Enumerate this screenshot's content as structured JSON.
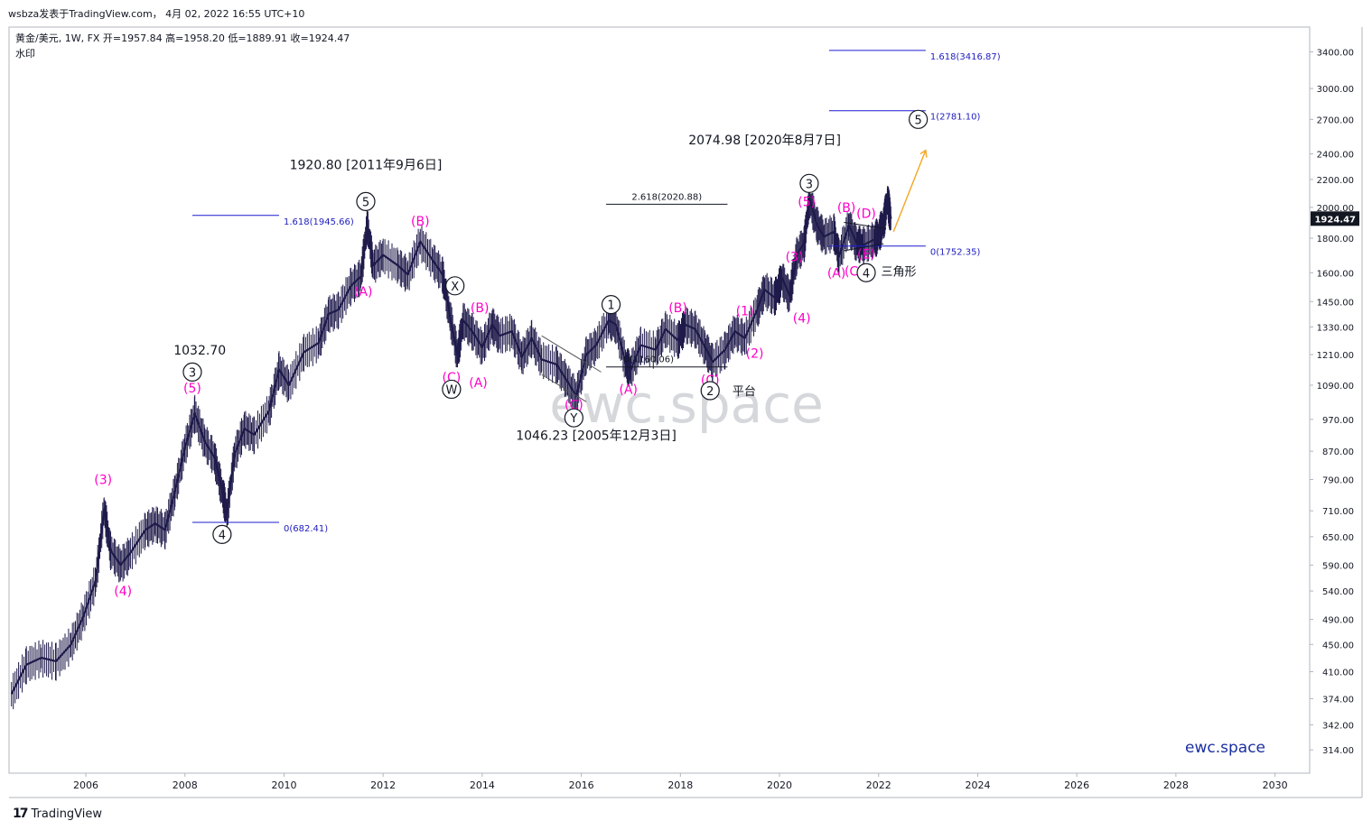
{
  "header": {
    "title": "wsbza发表于TradingView.com， 4月 02, 2022 16:55 UTC+10",
    "symbol_line": "黄金/美元, 1W, FX  开=1957.84  高=1958.20  低=1889.91  收=1924.47",
    "watermark_label": "水印"
  },
  "footer": {
    "brand": "TradingView"
  },
  "watermark": "ewc.space",
  "corner_mark": "ewc.space",
  "colors": {
    "price": "#1e1a4a",
    "wave_label": "#ff00c8",
    "fib_line": "#1c1cd0",
    "fib_text": "#2020c0",
    "projection": "#f5a623",
    "grid_border": "#b2b5be",
    "last_price_bg": "#131722"
  },
  "chart_data": {
    "type": "line",
    "xlabel": "",
    "ylabel": "",
    "scale": "log",
    "ylim": [
      290,
      3700
    ],
    "xlim": [
      2004.45,
      2030.7
    ],
    "x_ticks": [
      "2006",
      "2008",
      "2010",
      "2012",
      "2014",
      "2016",
      "2018",
      "2020",
      "2022",
      "2024",
      "2026",
      "2028",
      "2030"
    ],
    "y_ticks": [
      "3400.00",
      "3000.00",
      "2700.00",
      "2400.00",
      "2200.00",
      "2000.00",
      "1800.00",
      "1600.00",
      "1450.00",
      "1330.00",
      "1210.00",
      "1090.00",
      "970.00",
      "870.00",
      "790.00",
      "710.00",
      "650.00",
      "590.00",
      "540.00",
      "490.00",
      "450.00",
      "410.00",
      "374.00",
      "342.00",
      "314.00"
    ],
    "last_price": "1924.47",
    "series": [
      {
        "points": [
          [
            2004.5,
            380
          ],
          [
            2004.8,
            420
          ],
          [
            2005.1,
            430
          ],
          [
            2005.4,
            425
          ],
          [
            2005.7,
            450
          ],
          [
            2005.95,
            495
          ],
          [
            2006.2,
            560
          ],
          [
            2006.37,
            715
          ],
          [
            2006.5,
            620
          ],
          [
            2006.7,
            590
          ],
          [
            2006.9,
            615
          ],
          [
            2007.2,
            665
          ],
          [
            2007.4,
            680
          ],
          [
            2007.6,
            665
          ],
          [
            2007.8,
            760
          ],
          [
            2008.0,
            880
          ],
          [
            2008.2,
            990
          ],
          [
            2008.4,
            900
          ],
          [
            2008.6,
            850
          ],
          [
            2008.75,
            760
          ],
          [
            2008.85,
            705
          ],
          [
            2009.0,
            860
          ],
          [
            2009.2,
            940
          ],
          [
            2009.4,
            920
          ],
          [
            2009.7,
            1000
          ],
          [
            2009.9,
            1150
          ],
          [
            2010.1,
            1090
          ],
          [
            2010.4,
            1220
          ],
          [
            2010.7,
            1260
          ],
          [
            2010.9,
            1390
          ],
          [
            2011.1,
            1410
          ],
          [
            2011.35,
            1530
          ],
          [
            2011.55,
            1580
          ],
          [
            2011.68,
            1890
          ],
          [
            2011.8,
            1640
          ],
          [
            2012.0,
            1700
          ],
          [
            2012.3,
            1640
          ],
          [
            2012.5,
            1590
          ],
          [
            2012.75,
            1780
          ],
          [
            2013.0,
            1670
          ],
          [
            2013.2,
            1590
          ],
          [
            2013.35,
            1380
          ],
          [
            2013.5,
            1210
          ],
          [
            2013.62,
            1360
          ],
          [
            2013.8,
            1310
          ],
          [
            2014.0,
            1240
          ],
          [
            2014.2,
            1340
          ],
          [
            2014.35,
            1290
          ],
          [
            2014.6,
            1310
          ],
          [
            2014.8,
            1200
          ],
          [
            2015.0,
            1280
          ],
          [
            2015.2,
            1190
          ],
          [
            2015.5,
            1170
          ],
          [
            2015.7,
            1110
          ],
          [
            2015.9,
            1050
          ],
          [
            2016.1,
            1210
          ],
          [
            2016.3,
            1250
          ],
          [
            2016.55,
            1360
          ],
          [
            2016.7,
            1340
          ],
          [
            2016.9,
            1170
          ],
          [
            2017.0,
            1150
          ],
          [
            2017.2,
            1250
          ],
          [
            2017.5,
            1230
          ],
          [
            2017.7,
            1320
          ],
          [
            2017.95,
            1270
          ],
          [
            2018.1,
            1340
          ],
          [
            2018.3,
            1320
          ],
          [
            2018.5,
            1240
          ],
          [
            2018.65,
            1180
          ],
          [
            2018.9,
            1230
          ],
          [
            2019.1,
            1310
          ],
          [
            2019.3,
            1280
          ],
          [
            2019.55,
            1410
          ],
          [
            2019.7,
            1510
          ],
          [
            2019.9,
            1470
          ],
          [
            2020.05,
            1570
          ],
          [
            2020.2,
            1480
          ],
          [
            2020.35,
            1700
          ],
          [
            2020.5,
            1770
          ],
          [
            2020.6,
            2060
          ],
          [
            2020.75,
            1890
          ],
          [
            2020.9,
            1810
          ],
          [
            2021.1,
            1840
          ],
          [
            2021.2,
            1690
          ],
          [
            2021.4,
            1880
          ],
          [
            2021.55,
            1770
          ],
          [
            2021.7,
            1760
          ],
          [
            2021.9,
            1790
          ],
          [
            2022.0,
            1820
          ],
          [
            2022.1,
            1900
          ],
          [
            2022.18,
            2050
          ],
          [
            2022.25,
            1924
          ]
        ]
      }
    ],
    "fib_levels": [
      {
        "label": "1.618(1945.66)",
        "value": 1945.66,
        "x_start": 2008.15,
        "x_end": 2009.9
      },
      {
        "label": "0(682.41)",
        "value": 682.41,
        "x_start": 2008.15,
        "x_end": 2009.9
      },
      {
        "label": "2.618(2020.88)",
        "value": 2020.88,
        "x_start": 2016.5,
        "x_end": 2018.95
      },
      {
        "label": "0(1160.06)",
        "value": 1160.06,
        "x_start": 2016.5,
        "x_end": 2018.95
      },
      {
        "label": "1.618(3416.87)",
        "value": 3416.87,
        "x_start": 2021.0,
        "x_end": 2022.95
      },
      {
        "label": "1(2781.10)",
        "value": 2781.1,
        "x_start": 2021.0,
        "x_end": 2022.95
      },
      {
        "label": "0(1752.35)",
        "value": 1752.35,
        "x_start": 2021.0,
        "x_end": 2022.95
      }
    ],
    "wave_labels": [
      {
        "text": "(3)",
        "x": 2006.35,
        "y": 790,
        "circled": false
      },
      {
        "text": "(4)",
        "x": 2006.75,
        "y": 540,
        "circled": false
      },
      {
        "text": "(5)",
        "x": 2008.15,
        "y": 1080,
        "circled": false
      },
      {
        "text": "3",
        "x": 2008.15,
        "y": 1140,
        "circled": true
      },
      {
        "text": "4",
        "x": 2008.75,
        "y": 655,
        "circled": true
      },
      {
        "text": "5",
        "x": 2011.65,
        "y": 2040,
        "circled": true
      },
      {
        "text": "(A)",
        "x": 2011.6,
        "y": 1500,
        "circled": false
      },
      {
        "text": "(B)",
        "x": 2012.75,
        "y": 1910,
        "circled": false
      },
      {
        "text": "X",
        "x": 2013.45,
        "y": 1530,
        "circled": true
      },
      {
        "text": "(B)",
        "x": 2013.95,
        "y": 1420,
        "circled": false
      },
      {
        "text": "(C)",
        "x": 2013.38,
        "y": 1120,
        "circled": false
      },
      {
        "text": "(A)",
        "x": 2013.92,
        "y": 1100,
        "circled": false
      },
      {
        "text": "W",
        "x": 2013.38,
        "y": 1075,
        "circled": true
      },
      {
        "text": "(C)",
        "x": 2015.85,
        "y": 1020,
        "circled": false
      },
      {
        "text": "Y",
        "x": 2015.85,
        "y": 975,
        "circled": true
      },
      {
        "text": "1",
        "x": 2016.6,
        "y": 1435,
        "circled": true
      },
      {
        "text": "(A)",
        "x": 2016.95,
        "y": 1075,
        "circled": false
      },
      {
        "text": "(B)",
        "x": 2017.95,
        "y": 1420,
        "circled": false
      },
      {
        "text": "(C)",
        "x": 2018.6,
        "y": 1110,
        "circled": false
      },
      {
        "text": "2",
        "x": 2018.6,
        "y": 1070,
        "circled": true
      },
      {
        "text": "平台",
        "x": 2019.05,
        "y": 1070,
        "circled": false,
        "plain": true
      },
      {
        "text": "(1)",
        "x": 2019.3,
        "y": 1405,
        "circled": false
      },
      {
        "text": "(2)",
        "x": 2019.5,
        "y": 1215,
        "circled": false
      },
      {
        "text": "(3)",
        "x": 2020.3,
        "y": 1690,
        "circled": false
      },
      {
        "text": "(4)",
        "x": 2020.45,
        "y": 1370,
        "circled": false
      },
      {
        "text": "(5)",
        "x": 2020.55,
        "y": 2040,
        "circled": false
      },
      {
        "text": "3",
        "x": 2020.6,
        "y": 2170,
        "circled": true
      },
      {
        "text": "(B)",
        "x": 2021.35,
        "y": 2000,
        "circled": false
      },
      {
        "text": "(D)",
        "x": 2021.75,
        "y": 1960,
        "circled": false
      },
      {
        "text": "(E)",
        "x": 2021.75,
        "y": 1705,
        "circled": false
      },
      {
        "text": "(A)",
        "x": 2021.15,
        "y": 1600,
        "circled": false
      },
      {
        "text": "(C)",
        "x": 2021.5,
        "y": 1610,
        "circled": false
      },
      {
        "text": "4",
        "x": 2021.75,
        "y": 1600,
        "circled": true
      },
      {
        "text": "三角形",
        "x": 2022.05,
        "y": 1610,
        "circled": false,
        "plain": true
      },
      {
        "text": "5",
        "x": 2022.8,
        "y": 2700,
        "circled": true
      }
    ],
    "annotations": [
      {
        "text": "1032.70",
        "x": 2008.3,
        "y": 1210
      },
      {
        "text": "1920.80 [2011年9月6日]",
        "x": 2011.65,
        "y": 2280
      },
      {
        "text": "1046.23 [2005年12月3日]",
        "x": 2016.3,
        "y": 905
      },
      {
        "text": "2074.98 [2020年8月7日]",
        "x": 2019.7,
        "y": 2480
      }
    ]
  }
}
